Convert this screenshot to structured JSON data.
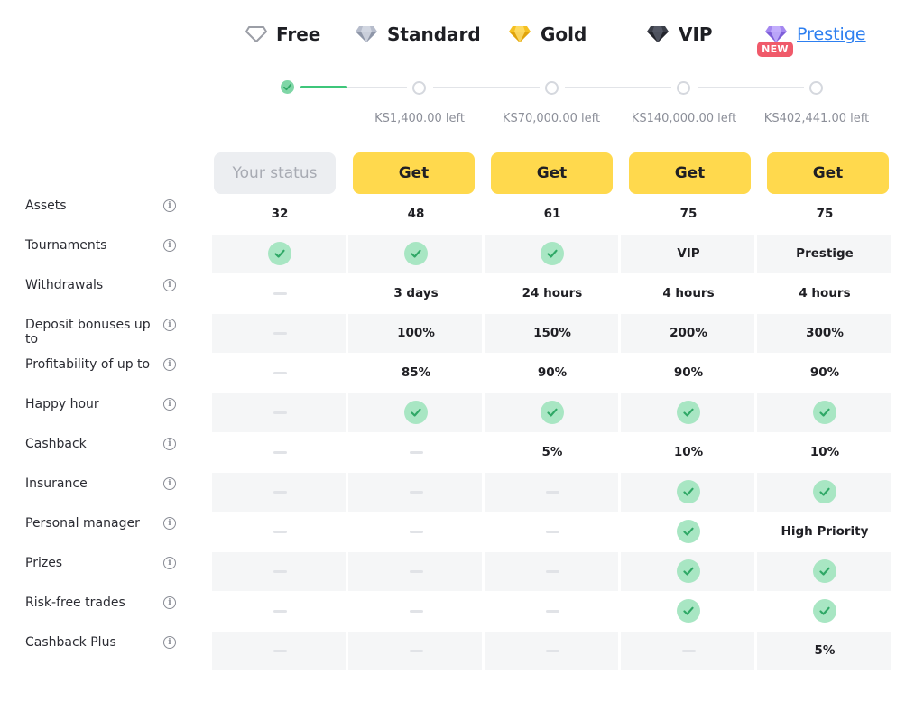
{
  "tiers": [
    {
      "name": "Free",
      "icon": "outline-diamond-icon"
    },
    {
      "name": "Standard",
      "icon": "silver-diamond-icon"
    },
    {
      "name": "Gold",
      "icon": "gold-diamond-icon"
    },
    {
      "name": "VIP",
      "icon": "black-diamond-icon"
    },
    {
      "name": "Prestige",
      "icon": "purple-diamond-icon",
      "badge": "NEW"
    }
  ],
  "progress": {
    "amounts_left": [
      "KS1,400.00 left",
      "KS70,000.00 left",
      "KS140,000.00 left",
      "KS402,441.00 left"
    ],
    "current_tier_index": 0
  },
  "buttons": {
    "status_label": "Your status",
    "get_label": "Get"
  },
  "rows": [
    {
      "label": "Assets",
      "cells": [
        "32",
        "48",
        "61",
        "75",
        "75"
      ]
    },
    {
      "label": "Tournaments",
      "cells": [
        "check",
        "check",
        "check",
        "VIP",
        "Prestige"
      ]
    },
    {
      "label": "Withdrawals",
      "cells": [
        "dash",
        "3 days",
        "24 hours",
        "4 hours",
        "4 hours"
      ]
    },
    {
      "label": "Deposit bonuses up to",
      "cells": [
        "dash",
        "100%",
        "150%",
        "200%",
        "300%"
      ]
    },
    {
      "label": "Profitability of up to",
      "cells": [
        "dash",
        "85%",
        "90%",
        "90%",
        "90%"
      ]
    },
    {
      "label": "Happy hour",
      "cells": [
        "dash",
        "check",
        "check",
        "check",
        "check"
      ]
    },
    {
      "label": "Cashback",
      "cells": [
        "dash",
        "dash",
        "5%",
        "10%",
        "10%"
      ]
    },
    {
      "label": "Insurance",
      "cells": [
        "dash",
        "dash",
        "dash",
        "check",
        "check"
      ]
    },
    {
      "label": "Personal manager",
      "cells": [
        "dash",
        "dash",
        "dash",
        "check",
        "High Priority"
      ]
    },
    {
      "label": "Prizes",
      "cells": [
        "dash",
        "dash",
        "dash",
        "check",
        "check"
      ]
    },
    {
      "label": "Risk-free trades",
      "cells": [
        "dash",
        "dash",
        "dash",
        "check",
        "check"
      ]
    },
    {
      "label": "Cashback Plus",
      "cells": [
        "dash",
        "dash",
        "dash",
        "dash",
        "5%"
      ]
    }
  ],
  "colors": {
    "accent_yellow": "#ffd94d",
    "check_green": "#3ec67a",
    "link_blue": "#2d7ff0",
    "badge_red": "#f05a6a"
  }
}
